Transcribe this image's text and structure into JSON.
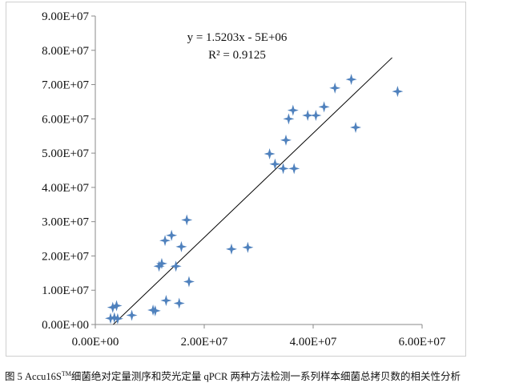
{
  "chart_data": {
    "type": "scatter",
    "series": [
      {
        "points": [
          [
            2800000,
            1800000
          ],
          [
            3200000,
            5000000
          ],
          [
            3500000,
            2000000
          ],
          [
            3900000,
            5500000
          ],
          [
            4100000,
            1700000
          ],
          [
            6700000,
            2700000
          ],
          [
            10600000,
            4200000
          ],
          [
            11000000,
            4000000
          ],
          [
            11700000,
            17000000
          ],
          [
            12200000,
            17800000
          ],
          [
            12800000,
            24500000
          ],
          [
            13000000,
            7000000
          ],
          [
            14000000,
            26000000
          ],
          [
            14800000,
            17000000
          ],
          [
            15400000,
            6200000
          ],
          [
            15800000,
            22700000
          ],
          [
            16800000,
            30500000
          ],
          [
            17200000,
            12500000
          ],
          [
            25000000,
            22000000
          ],
          [
            28000000,
            22500000
          ],
          [
            32000000,
            49800000
          ],
          [
            33000000,
            46800000
          ],
          [
            34500000,
            45500000
          ],
          [
            35000000,
            53800000
          ],
          [
            35500000,
            60000000
          ],
          [
            36300000,
            62500000
          ],
          [
            36500000,
            45500000
          ],
          [
            39000000,
            61000000
          ],
          [
            40500000,
            61000000
          ],
          [
            42000000,
            63500000
          ],
          [
            44000000,
            69000000
          ],
          [
            47000000,
            71500000
          ],
          [
            47800000,
            57500000
          ],
          [
            55500000,
            68000000
          ]
        ]
      }
    ],
    "trendline": {
      "slope": 1.5203,
      "intercept": -5000000,
      "x_range": [
        3300000,
        54500000
      ]
    },
    "annotation": {
      "equation": "y = 1.5203x  - 5E+06",
      "r2": "R² = 0.9125"
    },
    "x_ticks": [
      "0.00E+00",
      "2.00E+07",
      "4.00E+07",
      "6.00E+07"
    ],
    "y_ticks": [
      "0.00E+00",
      "1.00E+07",
      "2.00E+07",
      "3.00E+07",
      "4.00E+07",
      "5.00E+07",
      "6.00E+07",
      "7.00E+07",
      "8.00E+07",
      "9.00E+07"
    ],
    "xlim": [
      0,
      60000000
    ],
    "ylim": [
      0,
      90000000
    ],
    "grid": false,
    "marker_color": "#4f81bd",
    "line_color": "#000000"
  },
  "caption": {
    "prefix": "图 5 Accu16S",
    "superscript": "TM",
    "suffix": "细菌绝对定量测序和荧光定量 qPCR 两种方法检测一系列样本细菌总拷贝数的相关性分析"
  }
}
